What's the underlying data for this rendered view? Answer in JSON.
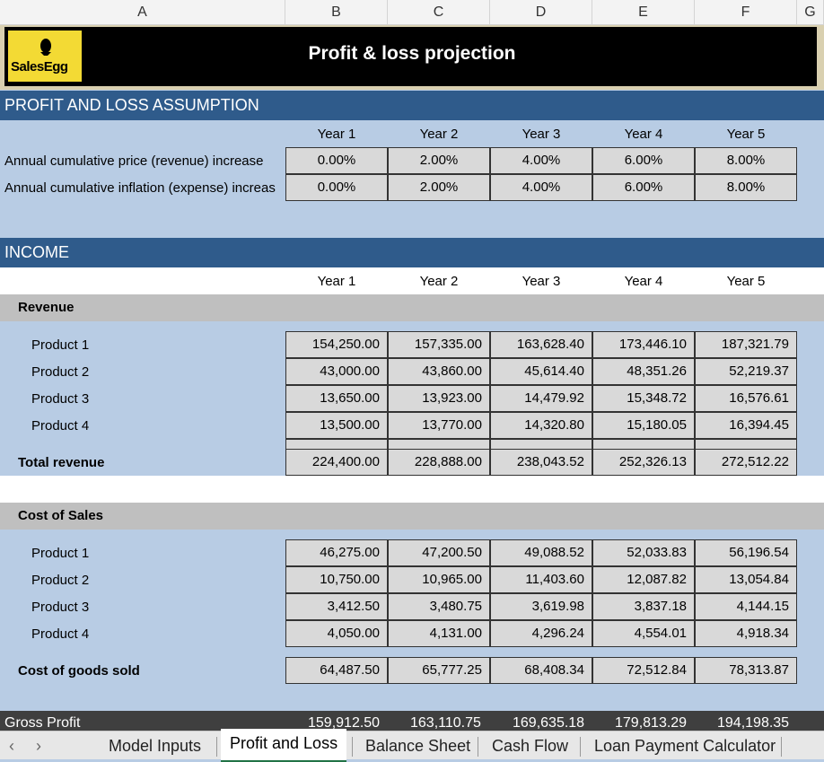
{
  "columns": [
    "A",
    "B",
    "C",
    "D",
    "E",
    "F",
    "G"
  ],
  "title": "Profit & loss projection",
  "logo_text": "SalesEgg",
  "assumption": {
    "heading": "PROFIT AND LOSS ASSUMPTION",
    "years": [
      "Year 1",
      "Year 2",
      "Year 3",
      "Year 4",
      "Year 5"
    ],
    "rows": [
      {
        "label": "Annual cumulative price (revenue) increase",
        "values": [
          "0.00%",
          "2.00%",
          "4.00%",
          "6.00%",
          "8.00%"
        ]
      },
      {
        "label": "Annual cumulative inflation (expense) increas",
        "values": [
          "0.00%",
          "2.00%",
          "4.00%",
          "6.00%",
          "8.00%"
        ]
      }
    ]
  },
  "income": {
    "heading": "INCOME",
    "years": [
      "Year 1",
      "Year 2",
      "Year 3",
      "Year 4",
      "Year 5"
    ],
    "revenue_label": "Revenue",
    "revenue_rows": [
      {
        "label": "Product 1",
        "values": [
          "154,250.00",
          "157,335.00",
          "163,628.40",
          "173,446.10",
          "187,321.79"
        ]
      },
      {
        "label": "Product 2",
        "values": [
          "43,000.00",
          "43,860.00",
          "45,614.40",
          "48,351.26",
          "52,219.37"
        ]
      },
      {
        "label": "Product 3",
        "values": [
          "13,650.00",
          "13,923.00",
          "14,479.92",
          "15,348.72",
          "16,576.61"
        ]
      },
      {
        "label": "Product 4",
        "values": [
          "13,500.00",
          "13,770.00",
          "14,320.80",
          "15,180.05",
          "16,394.45"
        ]
      }
    ],
    "total_revenue": {
      "label": "Total revenue",
      "values": [
        "224,400.00",
        "228,888.00",
        "238,043.52",
        "252,326.13",
        "272,512.22"
      ]
    },
    "cos_label": "Cost of Sales",
    "cos_rows": [
      {
        "label": "Product 1",
        "values": [
          "46,275.00",
          "47,200.50",
          "49,088.52",
          "52,033.83",
          "56,196.54"
        ]
      },
      {
        "label": "Product 2",
        "values": [
          "10,750.00",
          "10,965.00",
          "11,403.60",
          "12,087.82",
          "13,054.84"
        ]
      },
      {
        "label": "Product 3",
        "values": [
          "3,412.50",
          "3,480.75",
          "3,619.98",
          "3,837.18",
          "4,144.15"
        ]
      },
      {
        "label": "Product 4",
        "values": [
          "4,050.00",
          "4,131.00",
          "4,296.24",
          "4,554.01",
          "4,918.34"
        ]
      }
    ],
    "cogs": {
      "label": "Cost of goods sold",
      "values": [
        "64,487.50",
        "65,777.25",
        "68,408.34",
        "72,512.84",
        "78,313.87"
      ]
    },
    "gross_profit": {
      "label": "Gross Profit",
      "values": [
        "159,912.50",
        "163,110.75",
        "169,635.18",
        "179,813.29",
        "194,198.35"
      ]
    }
  },
  "tabs": [
    "Model Inputs",
    "Profit and Loss",
    "Balance Sheet",
    "Cash Flow",
    "Loan Payment Calculator"
  ],
  "active_tab": "Profit and Loss",
  "nav": {
    "prev": "‹",
    "next": "›"
  }
}
